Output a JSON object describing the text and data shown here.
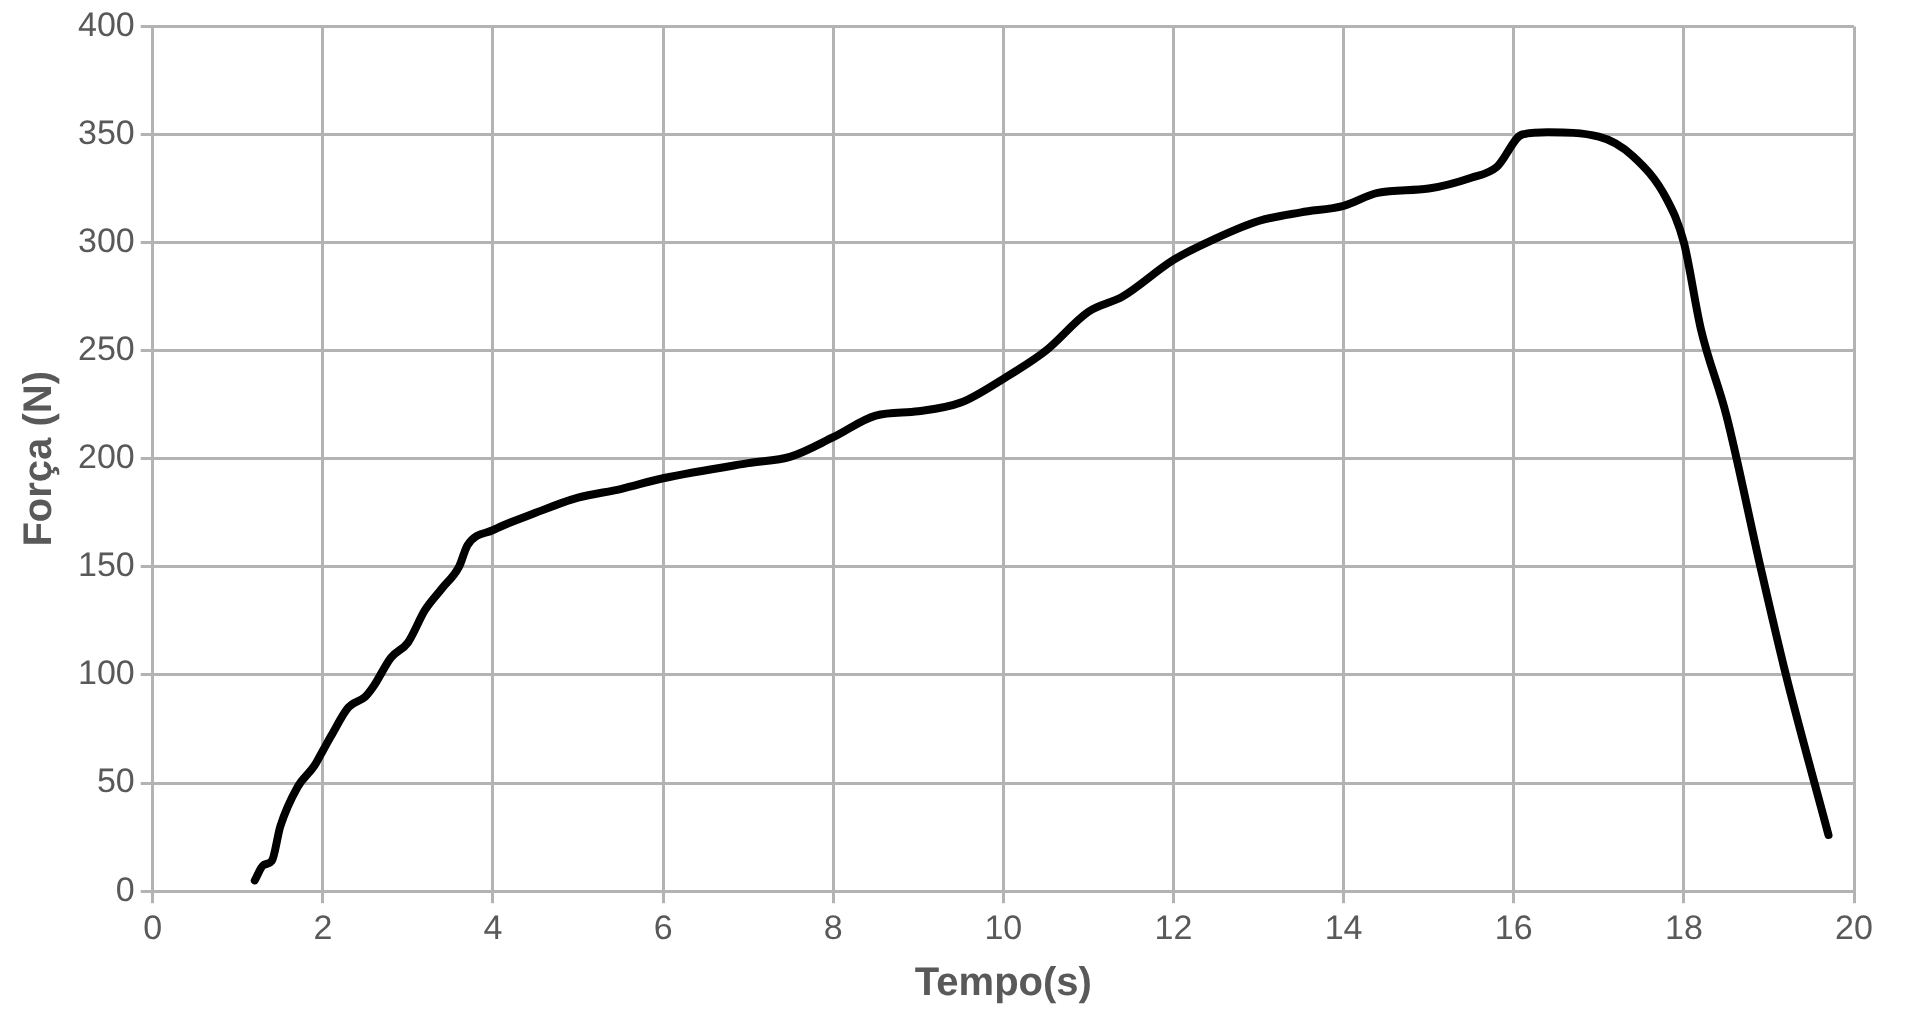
{
  "chart_data": {
    "type": "line",
    "xlabel": "Tempo(s)",
    "ylabel": "Força (N)",
    "xlim": [
      0,
      20
    ],
    "xticks": [
      0,
      2,
      4,
      6,
      8,
      10,
      12,
      14,
      16,
      18,
      20
    ],
    "ylim": [
      0,
      400
    ],
    "yticks": [
      0,
      50,
      100,
      150,
      200,
      250,
      300,
      350,
      400
    ],
    "grid": true,
    "marker": "none",
    "line_style": "solid",
    "series": [
      {
        "color": "#000000",
        "x": [
          1.2,
          1.3,
          1.4,
          1.5,
          1.7,
          1.9,
          2.0,
          2.1,
          2.3,
          2.5,
          2.6,
          2.8,
          3.0,
          3.2,
          3.4,
          3.6,
          3.7,
          4.0,
          4.5,
          5,
          5.5,
          6,
          7,
          7.5,
          8,
          8.5,
          9,
          9.5,
          10,
          10.5,
          11,
          11.4,
          12,
          12.5,
          13,
          13.5,
          14,
          14.4,
          15,
          15.5,
          15.8,
          16.1,
          16.4,
          17,
          17.4,
          17.8,
          18,
          18.2,
          18.5,
          18.9,
          19.2,
          19.7
        ],
        "values": [
          5,
          12,
          14,
          30,
          48,
          58,
          65,
          72,
          85,
          90,
          95,
          108,
          115,
          130,
          140,
          150,
          160,
          167,
          175,
          182,
          186,
          191,
          198,
          201,
          210,
          220,
          222,
          226,
          237,
          250,
          268,
          275,
          292,
          302,
          310,
          314,
          317,
          323,
          325,
          330,
          335,
          350,
          351,
          349,
          340,
          320,
          300,
          260,
          220,
          150,
          100,
          26
        ]
      }
    ]
  }
}
